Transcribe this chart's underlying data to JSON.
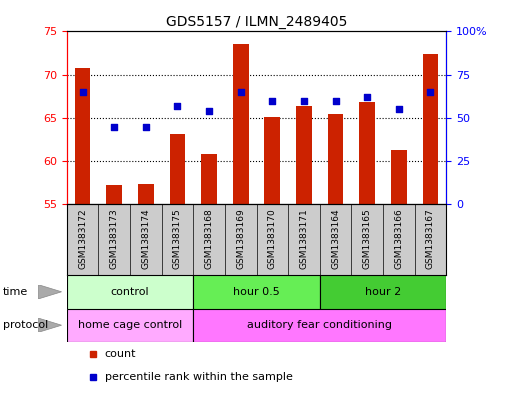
{
  "title": "GDS5157 / ILMN_2489405",
  "samples": [
    "GSM1383172",
    "GSM1383173",
    "GSM1383174",
    "GSM1383175",
    "GSM1383168",
    "GSM1383169",
    "GSM1383170",
    "GSM1383171",
    "GSM1383164",
    "GSM1383165",
    "GSM1383166",
    "GSM1383167"
  ],
  "count_values": [
    70.8,
    57.2,
    57.3,
    63.1,
    60.8,
    73.6,
    65.1,
    66.4,
    65.5,
    66.8,
    61.3,
    72.4
  ],
  "percentile_vals_right": [
    65,
    45,
    45,
    57,
    54,
    65,
    60,
    60,
    60,
    62,
    55,
    65
  ],
  "ylim_left": [
    55,
    75
  ],
  "ylim_right": [
    0,
    100
  ],
  "yticks_left": [
    55,
    60,
    65,
    70,
    75
  ],
  "yticks_right": [
    0,
    25,
    50,
    75,
    100
  ],
  "ytick_labels_right": [
    "0",
    "25",
    "50",
    "75",
    "100%"
  ],
  "bar_color": "#cc2200",
  "dot_color": "#0000cc",
  "time_groups": [
    {
      "label": "control",
      "start": 0,
      "end": 4,
      "color": "#ccffcc"
    },
    {
      "label": "hour 0.5",
      "start": 4,
      "end": 8,
      "color": "#66ee55"
    },
    {
      "label": "hour 2",
      "start": 8,
      "end": 12,
      "color": "#44cc33"
    }
  ],
  "protocol_groups": [
    {
      "label": "home cage control",
      "start": 0,
      "end": 4,
      "color": "#ffaaff"
    },
    {
      "label": "auditory fear conditioning",
      "start": 4,
      "end": 12,
      "color": "#ff77ff"
    }
  ],
  "legend_count_label": "count",
  "legend_percentile_label": "percentile rank within the sample",
  "time_label": "time",
  "protocol_label": "protocol",
  "xtick_bg_color": "#cccccc",
  "background_color": "#ffffff"
}
